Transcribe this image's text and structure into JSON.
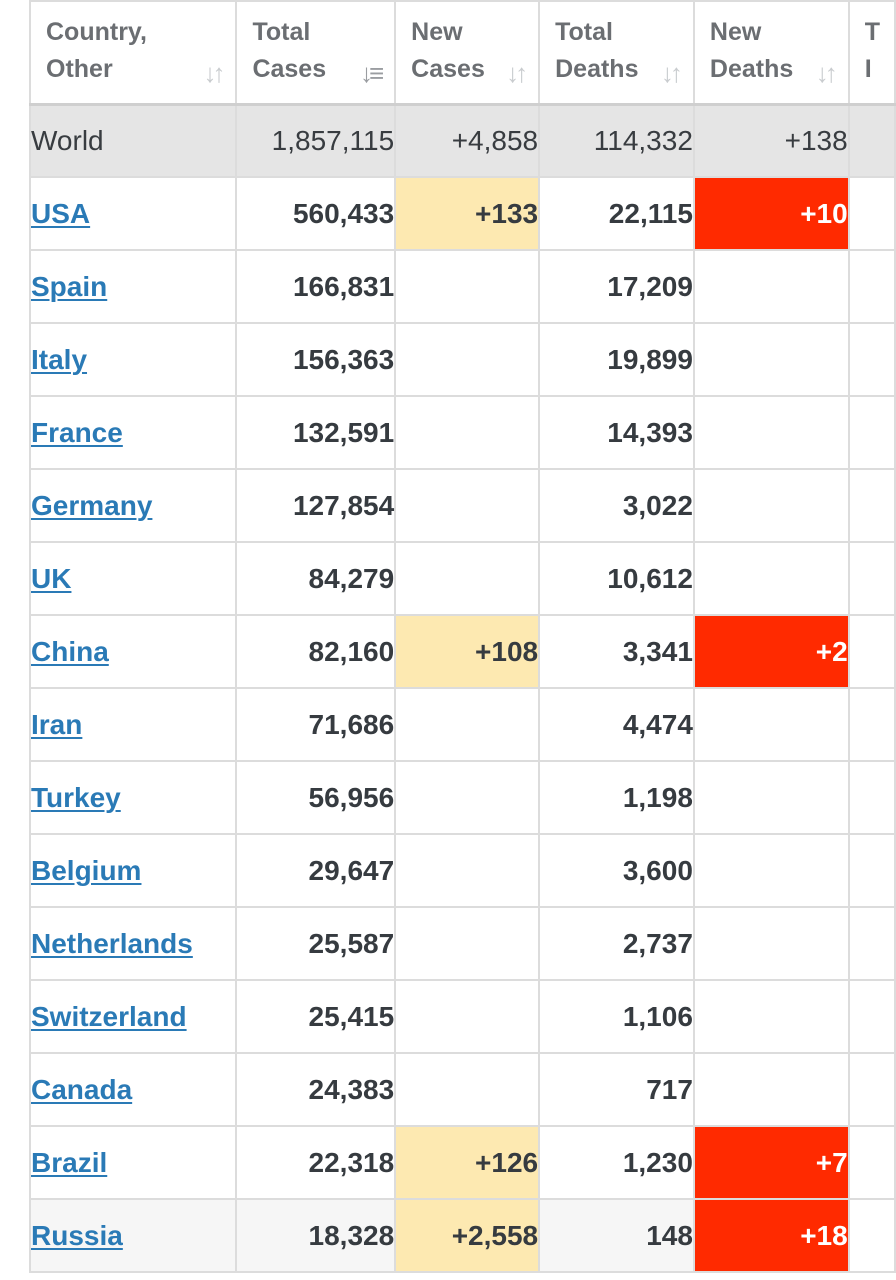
{
  "headers": {
    "country": [
      "Country,",
      "Other"
    ],
    "total_cases": [
      "Total",
      "Cases"
    ],
    "new_cases": [
      "New",
      "Cases"
    ],
    "total_deaths": [
      "Total",
      "Deaths"
    ],
    "new_deaths": [
      "New",
      "Deaths"
    ],
    "next_col_partial": [
      "T",
      "I"
    ]
  },
  "icons": {
    "sort": "sort-arrows-icon",
    "sort_active": "sort-desc-icon"
  },
  "colors": {
    "link": "#2a7ab6",
    "new_cases_highlight": "#fde9b1",
    "new_deaths_highlight": "#ff2a00",
    "world_row": "#e5e5e5"
  },
  "world": {
    "name": "World",
    "total_cases": "1,857,115",
    "new_cases": "+4,858",
    "total_deaths": "114,332",
    "new_deaths": "+138"
  },
  "rows": [
    {
      "country": "USA",
      "total_cases": "560,433",
      "new_cases": "+133",
      "total_deaths": "22,115",
      "new_deaths": "+10"
    },
    {
      "country": "Spain",
      "total_cases": "166,831",
      "new_cases": "",
      "total_deaths": "17,209",
      "new_deaths": ""
    },
    {
      "country": "Italy",
      "total_cases": "156,363",
      "new_cases": "",
      "total_deaths": "19,899",
      "new_deaths": ""
    },
    {
      "country": "France",
      "total_cases": "132,591",
      "new_cases": "",
      "total_deaths": "14,393",
      "new_deaths": ""
    },
    {
      "country": "Germany",
      "total_cases": "127,854",
      "new_cases": "",
      "total_deaths": "3,022",
      "new_deaths": ""
    },
    {
      "country": "UK",
      "total_cases": "84,279",
      "new_cases": "",
      "total_deaths": "10,612",
      "new_deaths": ""
    },
    {
      "country": "China",
      "total_cases": "82,160",
      "new_cases": "+108",
      "total_deaths": "3,341",
      "new_deaths": "+2"
    },
    {
      "country": "Iran",
      "total_cases": "71,686",
      "new_cases": "",
      "total_deaths": "4,474",
      "new_deaths": ""
    },
    {
      "country": "Turkey",
      "total_cases": "56,956",
      "new_cases": "",
      "total_deaths": "1,198",
      "new_deaths": ""
    },
    {
      "country": "Belgium",
      "total_cases": "29,647",
      "new_cases": "",
      "total_deaths": "3,600",
      "new_deaths": ""
    },
    {
      "country": "Netherlands",
      "total_cases": "25,587",
      "new_cases": "",
      "total_deaths": "2,737",
      "new_deaths": ""
    },
    {
      "country": "Switzerland",
      "total_cases": "25,415",
      "new_cases": "",
      "total_deaths": "1,106",
      "new_deaths": ""
    },
    {
      "country": "Canada",
      "total_cases": "24,383",
      "new_cases": "",
      "total_deaths": "717",
      "new_deaths": ""
    },
    {
      "country": "Brazil",
      "total_cases": "22,318",
      "new_cases": "+126",
      "total_deaths": "1,230",
      "new_deaths": "+7"
    },
    {
      "country": "Russia",
      "total_cases": "18,328",
      "new_cases": "+2,558",
      "total_deaths": "148",
      "new_deaths": "+18"
    }
  ]
}
